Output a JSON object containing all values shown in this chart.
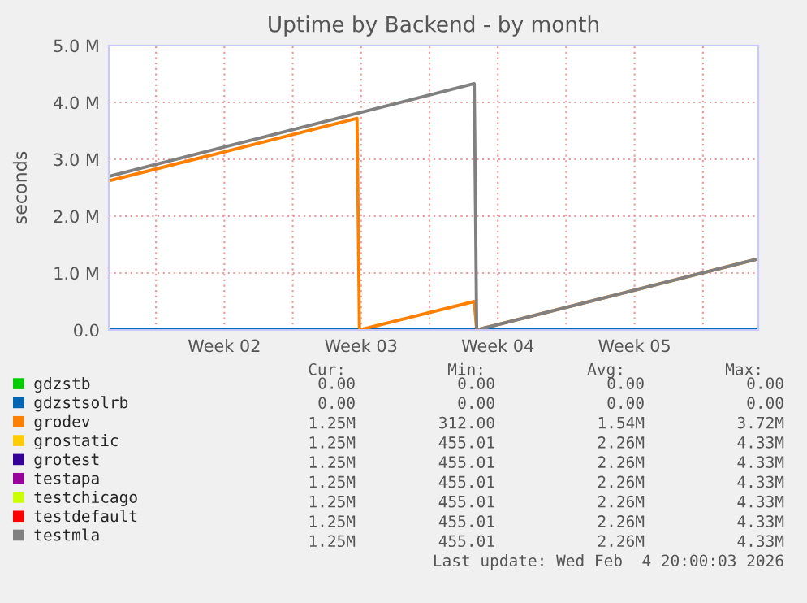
{
  "chart_data": {
    "type": "line",
    "title": "Uptime by Backend - by month",
    "ylabel": "seconds",
    "xlim": [
      "2026-01-02T14:00",
      "2026-02-04T20:00"
    ],
    "ylim": [
      0,
      5000000
    ],
    "xticks": [
      {
        "value": "2026-01-05",
        "label": null
      },
      {
        "value": "2026-01-08T12:00",
        "label": "Week 02"
      },
      {
        "value": "2026-01-12",
        "label": null
      },
      {
        "value": "2026-01-15T12:00",
        "label": "Week 03"
      },
      {
        "value": "2026-01-19",
        "label": null
      },
      {
        "value": "2026-01-22T12:00",
        "label": "Week 04"
      },
      {
        "value": "2026-01-26",
        "label": null
      },
      {
        "value": "2026-01-29T12:00",
        "label": "Week 05"
      },
      {
        "value": "2026-02-02",
        "label": null
      }
    ],
    "yticks": [
      {
        "value": 0,
        "label": "0.0"
      },
      {
        "value": 1000000,
        "label": "1.0 M"
      },
      {
        "value": 2000000,
        "label": "2.0 M"
      },
      {
        "value": 3000000,
        "label": "3.0 M"
      },
      {
        "value": 4000000,
        "label": "4.0 M"
      },
      {
        "value": 5000000,
        "label": "5.0 M"
      }
    ],
    "grid": true,
    "legend": "bottom",
    "series": [
      {
        "name": "gdzstb",
        "color": "#00cc00"
      },
      {
        "name": "gdzstsolrb",
        "color": "#0066b3",
        "x": [
          "2026-01-02T14:00",
          "2026-02-04T20:00"
        ],
        "values": [
          0,
          0
        ]
      },
      {
        "name": "grodev",
        "color": "#ff8000",
        "x": [
          "2026-01-02T14:00",
          "2026-01-15T07:00",
          "2026-01-15T10:00",
          "2026-01-21T07:00",
          "2026-01-21T10:00",
          "2026-02-04T20:00"
        ],
        "values": [
          2620000,
          3720000,
          0,
          500000,
          0,
          1250000
        ]
      },
      {
        "name": "grostatic",
        "color": "#ffcc00"
      },
      {
        "name": "grotest",
        "color": "#330099"
      },
      {
        "name": "testapa",
        "color": "#990099"
      },
      {
        "name": "testchicago",
        "color": "#ccff00"
      },
      {
        "name": "testdefault",
        "color": "#ff0000"
      },
      {
        "name": "testmla",
        "color": "#808080",
        "x": [
          "2026-01-02T14:00",
          "2026-01-21T07:00",
          "2026-01-21T10:00",
          "2026-02-04T20:00"
        ],
        "values": [
          2700000,
          4330000,
          0,
          1250000
        ]
      }
    ],
    "annotations": [
      "Cur:",
      "Min:",
      "Avg:",
      "Max:",
      "0.00",
      "0.00",
      "0.00",
      "0.00",
      "0.00",
      "0.00",
      "0.00",
      "0.00",
      "1.25M",
      "312.00",
      "1.54M",
      "3.72M",
      "1.25M",
      "455.01",
      "2.26M",
      "4.33M",
      "1.25M",
      "455.01",
      "2.26M",
      "4.33M",
      "1.25M",
      "455.01",
      "2.26M",
      "4.33M",
      "1.25M",
      "455.01",
      "2.26M",
      "4.33M",
      "1.25M",
      "455.01",
      "2.26M",
      "4.33M",
      "1.25M",
      "455.01",
      "2.26M",
      "4.33M",
      "Last update: Wed Feb  4 20:00:03 2026"
    ]
  }
}
